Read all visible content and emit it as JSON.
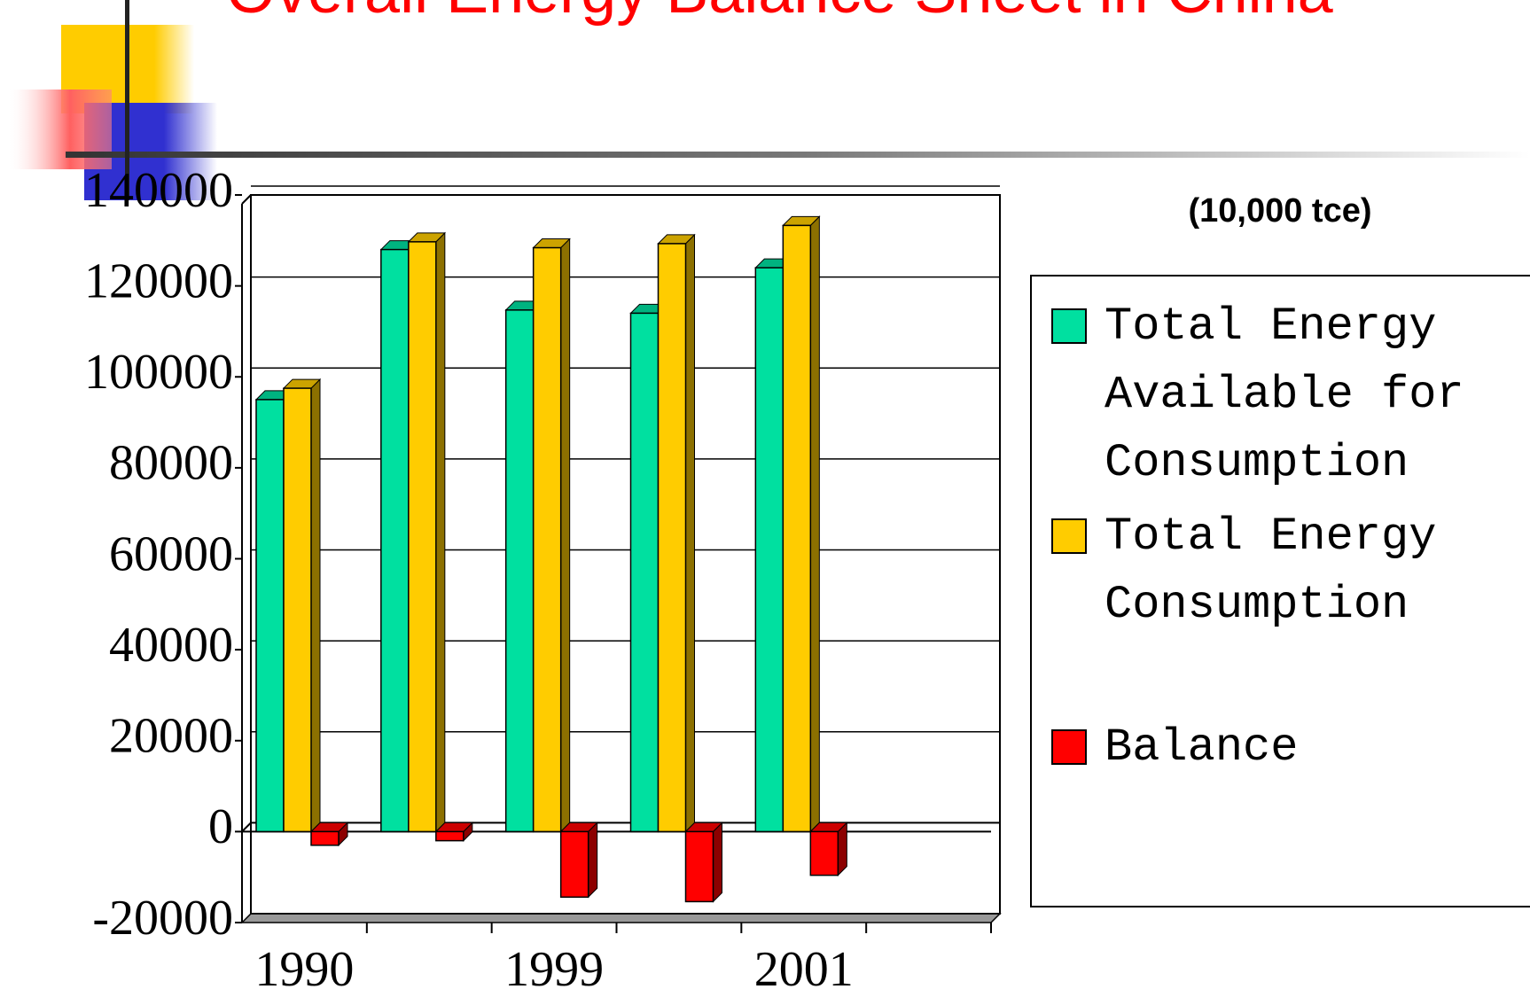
{
  "chart_data": {
    "type": "bar3d",
    "title": "Overall Energy Balance Sheet in China",
    "subtitle": "(10,000 tce)",
    "categories": [
      "1990",
      null,
      "1999",
      null,
      "2001",
      null
    ],
    "series": [
      {
        "name": "Total Energy Available for Consumption",
        "color": "#00e0a0",
        "values": [
          95000,
          128000,
          114700,
          114000,
          124000,
          null
        ]
      },
      {
        "name": "Total Energy Consumption",
        "color": "#ffcc00",
        "values": [
          97500,
          129700,
          128400,
          129300,
          133300,
          null
        ]
      },
      {
        "name": "Balance",
        "color": "#ff0000",
        "values": [
          -3000,
          -2000,
          -14400,
          -15400,
          -9600,
          null
        ]
      }
    ],
    "ylim": [
      -20000,
      140000
    ],
    "yticks": [
      -20000,
      0,
      20000,
      40000,
      60000,
      80000,
      100000,
      120000,
      140000
    ],
    "grid": true
  }
}
